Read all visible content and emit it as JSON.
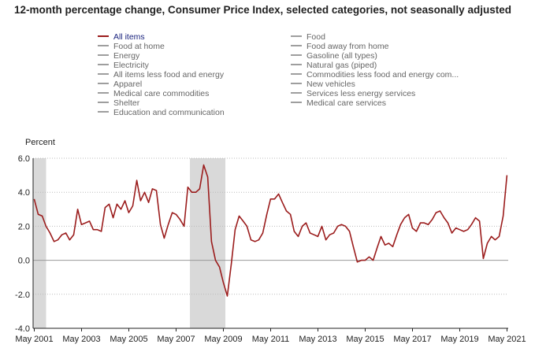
{
  "title": "12-month percentage change, Consumer Price Index, selected categories, not seasonally adjusted",
  "legend": [
    {
      "label": "All items",
      "active": true
    },
    {
      "label": "Food at home",
      "active": false
    },
    {
      "label": "Energy",
      "active": false
    },
    {
      "label": "Electricity",
      "active": false
    },
    {
      "label": "All items less food and energy",
      "active": false
    },
    {
      "label": "Apparel",
      "active": false
    },
    {
      "label": "Medical care commodities",
      "active": false
    },
    {
      "label": "Shelter",
      "active": false
    },
    {
      "label": "Education and communication",
      "active": false
    },
    {
      "label": "Food",
      "active": false
    },
    {
      "label": "Food away from home",
      "active": false
    },
    {
      "label": "Gasoline (all types)",
      "active": false
    },
    {
      "label": "Natural gas (piped)",
      "active": false
    },
    {
      "label": "Commodities less food and energy com...",
      "active": false
    },
    {
      "label": "New vehicles",
      "active": false
    },
    {
      "label": "Services less energy services",
      "active": false
    },
    {
      "label": "Medical care services",
      "active": false
    }
  ],
  "colors": {
    "series": "#9b1c1c",
    "recession": "#d9d9d9",
    "inactive": "#9e9e9e"
  },
  "chart_data": {
    "type": "line",
    "ylabel": "Percent",
    "xlabel": "",
    "ylim": [
      -4.0,
      6.0
    ],
    "yticks": [
      "6.0",
      "4.0",
      "2.0",
      "0.0",
      "-2.0",
      "-4.0"
    ],
    "ytick_values": [
      6,
      4,
      2,
      0,
      -2,
      -4
    ],
    "xticks": [
      "May 2001",
      "May 2003",
      "May 2005",
      "May 2007",
      "May 2009",
      "May 2011",
      "May 2013",
      "May 2015",
      "May 2017",
      "May 2019",
      "May 2021"
    ],
    "xtick_values": [
      2001.333,
      2003.333,
      2005.333,
      2007.333,
      2009.333,
      2011.333,
      2013.333,
      2015.333,
      2017.333,
      2019.333,
      2021.333
    ],
    "grid": true,
    "recessions": [
      [
        2001.167,
        2001.833
      ],
      [
        2007.917,
        2009.417
      ]
    ],
    "series": [
      {
        "name": "All items",
        "points": [
          [
            2001.33,
            3.6
          ],
          [
            2001.5,
            2.7
          ],
          [
            2001.67,
            2.6
          ],
          [
            2001.83,
            2.0
          ],
          [
            2002.0,
            1.6
          ],
          [
            2002.17,
            1.1
          ],
          [
            2002.33,
            1.2
          ],
          [
            2002.5,
            1.5
          ],
          [
            2002.67,
            1.6
          ],
          [
            2002.83,
            1.2
          ],
          [
            2003.0,
            1.5
          ],
          [
            2003.17,
            3.0
          ],
          [
            2003.33,
            2.1
          ],
          [
            2003.5,
            2.2
          ],
          [
            2003.67,
            2.3
          ],
          [
            2003.83,
            1.8
          ],
          [
            2004.0,
            1.8
          ],
          [
            2004.17,
            1.7
          ],
          [
            2004.33,
            3.1
          ],
          [
            2004.5,
            3.3
          ],
          [
            2004.67,
            2.5
          ],
          [
            2004.83,
            3.3
          ],
          [
            2005.0,
            3.0
          ],
          [
            2005.17,
            3.5
          ],
          [
            2005.33,
            2.8
          ],
          [
            2005.5,
            3.2
          ],
          [
            2005.67,
            4.7
          ],
          [
            2005.83,
            3.5
          ],
          [
            2006.0,
            4.0
          ],
          [
            2006.17,
            3.4
          ],
          [
            2006.33,
            4.2
          ],
          [
            2006.5,
            4.1
          ],
          [
            2006.67,
            2.1
          ],
          [
            2006.83,
            1.3
          ],
          [
            2007.0,
            2.1
          ],
          [
            2007.17,
            2.8
          ],
          [
            2007.33,
            2.7
          ],
          [
            2007.5,
            2.4
          ],
          [
            2007.67,
            2.0
          ],
          [
            2007.83,
            4.3
          ],
          [
            2008.0,
            4.0
          ],
          [
            2008.17,
            4.0
          ],
          [
            2008.33,
            4.2
          ],
          [
            2008.5,
            5.6
          ],
          [
            2008.67,
            4.9
          ],
          [
            2008.83,
            1.1
          ],
          [
            2009.0,
            0.0
          ],
          [
            2009.17,
            -0.4
          ],
          [
            2009.33,
            -1.3
          ],
          [
            2009.5,
            -2.1
          ],
          [
            2009.67,
            -0.2
          ],
          [
            2009.83,
            1.8
          ],
          [
            2010.0,
            2.6
          ],
          [
            2010.17,
            2.3
          ],
          [
            2010.33,
            2.0
          ],
          [
            2010.5,
            1.2
          ],
          [
            2010.67,
            1.1
          ],
          [
            2010.83,
            1.2
          ],
          [
            2011.0,
            1.6
          ],
          [
            2011.17,
            2.7
          ],
          [
            2011.33,
            3.6
          ],
          [
            2011.5,
            3.6
          ],
          [
            2011.67,
            3.9
          ],
          [
            2011.83,
            3.4
          ],
          [
            2012.0,
            2.9
          ],
          [
            2012.17,
            2.7
          ],
          [
            2012.33,
            1.7
          ],
          [
            2012.5,
            1.4
          ],
          [
            2012.67,
            2.0
          ],
          [
            2012.83,
            2.2
          ],
          [
            2013.0,
            1.6
          ],
          [
            2013.17,
            1.5
          ],
          [
            2013.33,
            1.4
          ],
          [
            2013.5,
            2.0
          ],
          [
            2013.67,
            1.2
          ],
          [
            2013.83,
            1.5
          ],
          [
            2014.0,
            1.6
          ],
          [
            2014.17,
            2.0
          ],
          [
            2014.33,
            2.1
          ],
          [
            2014.5,
            2.0
          ],
          [
            2014.67,
            1.7
          ],
          [
            2014.83,
            0.8
          ],
          [
            2015.0,
            -0.1
          ],
          [
            2015.17,
            0.0
          ],
          [
            2015.33,
            0.0
          ],
          [
            2015.5,
            0.2
          ],
          [
            2015.67,
            0.0
          ],
          [
            2015.83,
            0.7
          ],
          [
            2016.0,
            1.4
          ],
          [
            2016.17,
            0.9
          ],
          [
            2016.33,
            1.0
          ],
          [
            2016.5,
            0.8
          ],
          [
            2016.67,
            1.5
          ],
          [
            2016.83,
            2.1
          ],
          [
            2017.0,
            2.5
          ],
          [
            2017.17,
            2.7
          ],
          [
            2017.33,
            1.9
          ],
          [
            2017.5,
            1.7
          ],
          [
            2017.67,
            2.2
          ],
          [
            2017.83,
            2.2
          ],
          [
            2018.0,
            2.1
          ],
          [
            2018.17,
            2.4
          ],
          [
            2018.33,
            2.8
          ],
          [
            2018.5,
            2.9
          ],
          [
            2018.67,
            2.5
          ],
          [
            2018.83,
            2.2
          ],
          [
            2019.0,
            1.6
          ],
          [
            2019.17,
            1.9
          ],
          [
            2019.33,
            1.8
          ],
          [
            2019.5,
            1.7
          ],
          [
            2019.67,
            1.8
          ],
          [
            2019.83,
            2.1
          ],
          [
            2020.0,
            2.5
          ],
          [
            2020.17,
            2.3
          ],
          [
            2020.33,
            0.1
          ],
          [
            2020.5,
            1.0
          ],
          [
            2020.67,
            1.4
          ],
          [
            2020.83,
            1.2
          ],
          [
            2021.0,
            1.4
          ],
          [
            2021.17,
            2.6
          ],
          [
            2021.33,
            5.0
          ]
        ]
      }
    ]
  }
}
